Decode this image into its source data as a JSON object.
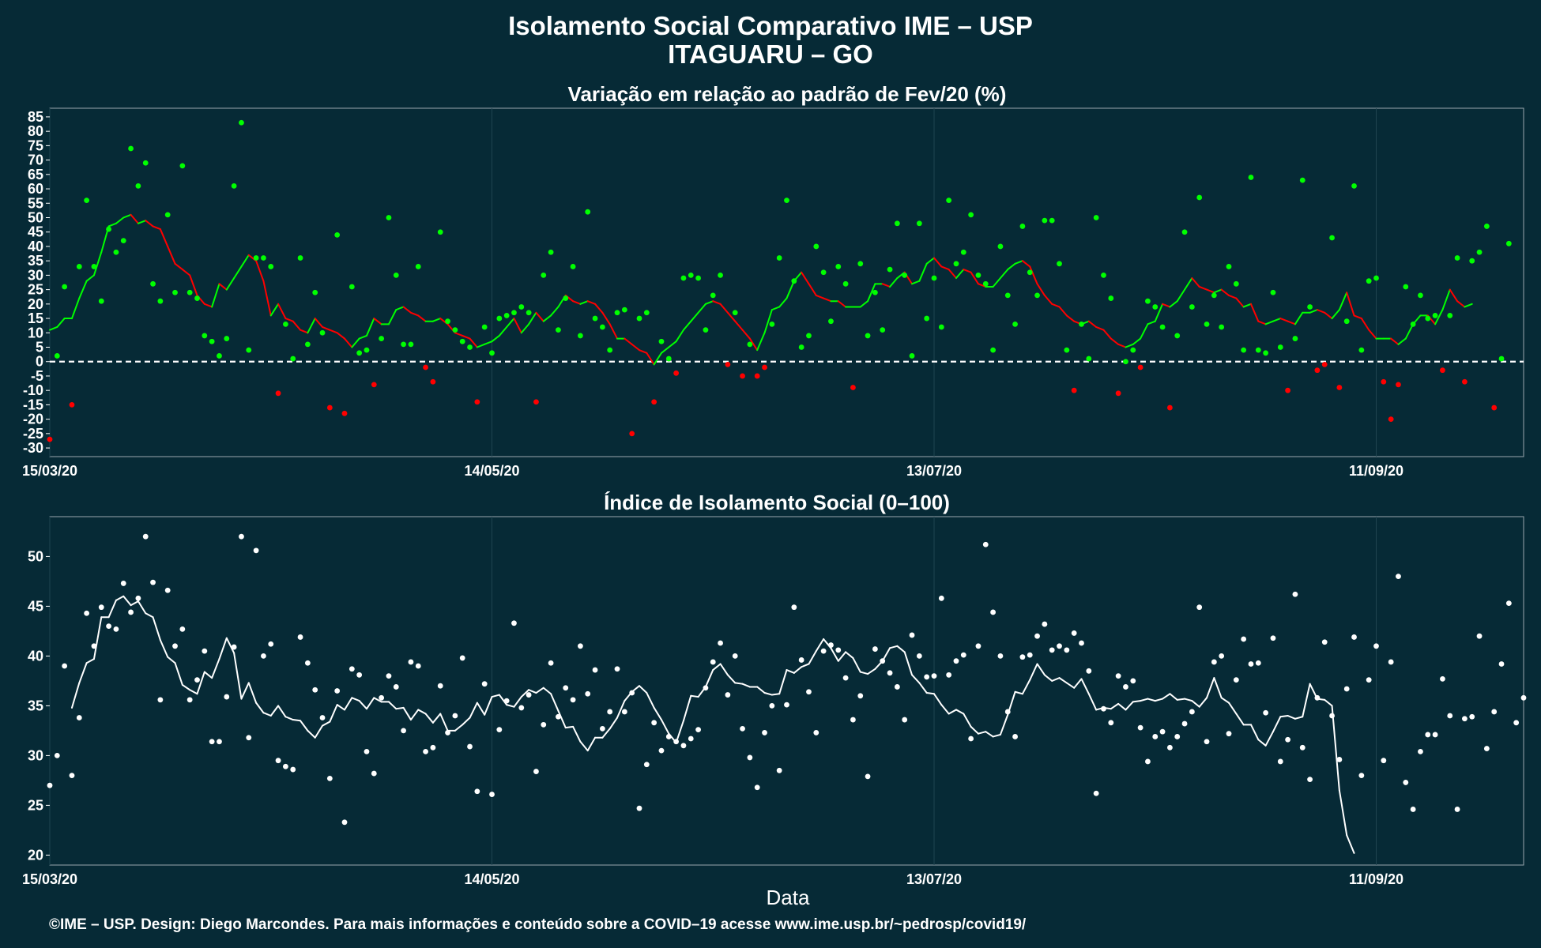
{
  "title": "Isolamento Social Comparativo IME – USP",
  "subtitle": "ITAGUARU – GO",
  "xlabel": "Data",
  "caption": "©IME – USP. Design: Diego Marcondes. Para mais informações e conteúdo sobre a COVID–19 acesse www.ime.usp.br/~pedrosp/covid19/",
  "colors": {
    "background": "#062a36",
    "positive": "#00ff00",
    "negative": "#ff0000",
    "index": "#ffffff",
    "zero_line": "#ffffff"
  },
  "chart_data": [
    {
      "type": "scatter",
      "title": "Variação em relação ao padrão de Fev/20 (%)",
      "x_start_date": "2020-03-15",
      "x_ticks": [
        {
          "label": "15/03/20",
          "day": 0
        },
        {
          "label": "14/05/20",
          "day": 60
        },
        {
          "label": "13/07/20",
          "day": 120
        },
        {
          "label": "11/09/20",
          "day": 180
        }
      ],
      "xlim_days": [
        0,
        200
      ],
      "ylim": [
        -33,
        88
      ],
      "y_ticks": [
        -30,
        -25,
        -20,
        -15,
        -10,
        -5,
        0,
        5,
        10,
        15,
        20,
        25,
        30,
        35,
        40,
        45,
        50,
        55,
        60,
        65,
        70,
        75,
        80,
        85
      ],
      "zero_line": true,
      "point_colors": "positive values green, negative values red",
      "series": [
        {
          "name": "daily",
          "values": [
            -27,
            2,
            26,
            -15,
            33,
            56,
            33,
            21,
            46,
            38,
            42,
            74,
            61,
            69,
            27,
            21,
            51,
            24,
            68,
            24,
            22,
            9,
            7,
            2,
            8,
            61,
            83,
            4,
            36,
            36,
            33,
            -11,
            13,
            1,
            36,
            6,
            24,
            10,
            -16,
            44,
            -18,
            26,
            3,
            4,
            -8,
            8,
            50,
            30,
            6,
            6,
            33,
            -2,
            -7,
            45,
            14,
            11,
            7,
            5,
            -14,
            12,
            3,
            15,
            16,
            17,
            19,
            17,
            -14,
            30,
            38,
            11,
            22,
            33,
            9,
            52,
            15,
            12,
            4,
            17,
            18,
            -25,
            15,
            17,
            -14,
            7,
            1,
            -4,
            29,
            30,
            29,
            11,
            23,
            30,
            -1,
            17,
            -5,
            6,
            -5,
            -2,
            13,
            36,
            56,
            28,
            5,
            9,
            40,
            31,
            14,
            33,
            27,
            -9,
            34,
            9,
            24,
            11,
            32,
            48,
            30,
            2,
            48,
            15,
            29,
            12,
            56,
            34,
            38,
            51,
            30,
            27,
            4,
            40,
            23,
            13,
            47,
            31,
            23,
            49,
            49,
            34,
            4,
            -10,
            13,
            1,
            50,
            30,
            22,
            -11,
            0,
            4,
            -2,
            21,
            19,
            12,
            -16,
            9,
            45,
            19,
            57,
            13,
            23,
            12,
            33,
            27,
            4,
            64,
            4,
            3,
            24,
            5,
            -10,
            8,
            63,
            19,
            -3,
            -1,
            43,
            -9,
            14,
            61,
            4,
            28,
            29,
            -7,
            -20,
            -8,
            26,
            13,
            23,
            15,
            16,
            -3,
            16,
            36,
            -7,
            35,
            38,
            47,
            -16,
            1,
            41
          ]
        },
        {
          "name": "moving average",
          "values": [
            11,
            12,
            15,
            15,
            22,
            28,
            30,
            38,
            47,
            48,
            50,
            51,
            48,
            49,
            47,
            46,
            40,
            34,
            32,
            30,
            23,
            20,
            19,
            27,
            25,
            29,
            33,
            37,
            35,
            28,
            16,
            20,
            15,
            14,
            11,
            10,
            15,
            12,
            11,
            10,
            8,
            5,
            8,
            9,
            15,
            13,
            13,
            18,
            19,
            17,
            16,
            14,
            14,
            15,
            13,
            10,
            9,
            8,
            5,
            6,
            7,
            9,
            12,
            15,
            10,
            13,
            17,
            14,
            16,
            19,
            23,
            21,
            20,
            21,
            20,
            17,
            13,
            8,
            8,
            6,
            4,
            3,
            -1,
            3,
            5,
            7,
            11,
            14,
            17,
            20,
            21,
            20,
            17,
            14,
            11,
            8,
            4,
            10,
            18,
            19,
            22,
            28,
            31,
            27,
            23,
            22,
            21,
            21,
            19,
            19,
            19,
            21,
            27,
            27,
            26,
            29,
            31,
            27,
            28,
            34,
            36,
            33,
            32,
            29,
            32,
            31,
            27,
            26,
            26,
            29,
            32,
            34,
            35,
            33,
            27,
            23,
            20,
            19,
            16,
            14,
            13,
            14,
            12,
            11,
            8,
            6,
            5,
            6,
            8,
            13,
            14,
            20,
            19,
            21,
            25,
            29,
            26,
            25,
            24,
            25,
            23,
            22,
            19,
            20,
            14,
            13,
            14,
            15,
            14,
            13,
            17,
            17,
            18,
            17,
            15,
            18,
            24,
            16,
            15,
            11,
            8,
            8,
            8,
            6,
            8,
            13,
            16,
            16,
            13,
            18,
            25,
            21,
            19,
            20,
            null
          ]
        }
      ]
    },
    {
      "type": "scatter",
      "title": "Índice de Isolamento Social (0–100)",
      "x_start_date": "2020-03-15",
      "x_ticks": [
        {
          "label": "15/03/20",
          "day": 0
        },
        {
          "label": "14/05/20",
          "day": 60
        },
        {
          "label": "13/07/20",
          "day": 120
        },
        {
          "label": "11/09/20",
          "day": 180
        }
      ],
      "xlim_days": [
        0,
        200
      ],
      "ylim": [
        19,
        54
      ],
      "y_ticks": [
        20,
        25,
        30,
        35,
        40,
        45,
        50
      ],
      "series": [
        {
          "name": "daily",
          "values": [
            27,
            30,
            39,
            28,
            33.8,
            44.3,
            41,
            44.9,
            43,
            42.7,
            47.3,
            44.4,
            45.8,
            52,
            47.4,
            35.6,
            46.6,
            41,
            42.7,
            35.6,
            37.6,
            40.5,
            31.4,
            31.4,
            35.9,
            40.9,
            52,
            31.8,
            50.6,
            40,
            41.2,
            29.5,
            28.9,
            28.6,
            41.9,
            39.3,
            36.6,
            33.8,
            27.7,
            36.5,
            23.3,
            38.7,
            38.1,
            30.4,
            28.2,
            35.8,
            38,
            36.9,
            32.5,
            39.4,
            39,
            30.4,
            30.8,
            37,
            32.3,
            34,
            39.8,
            30.9,
            26.4,
            37.2,
            26.1,
            32.6,
            35.5,
            43.3,
            34.8,
            36.1,
            28.4,
            33.1,
            39.3,
            33.9,
            36.8,
            35.6,
            41,
            36.2,
            38.6,
            32.7,
            34.4,
            38.7,
            34.4,
            36.3,
            24.7,
            29.1,
            33.3,
            30.5,
            31.9,
            31.4,
            31,
            31.7,
            32.6,
            36.8,
            39.4,
            41.3,
            36.1,
            40,
            32.7,
            29.8,
            26.8,
            32.3,
            35,
            28.5,
            35.1,
            44.9,
            39.6,
            36.4,
            32.3,
            40.5,
            41.1,
            40.6,
            37.8,
            33.6,
            36,
            27.9,
            40.7,
            39.5,
            38.3,
            36.9,
            33.6,
            42.1,
            40,
            37.9,
            38,
            45.8,
            38.1,
            39.5,
            40.1,
            31.7,
            41,
            51.2,
            44.4,
            40,
            34.4,
            31.9,
            39.9,
            40.1,
            42,
            43.2,
            40.6,
            41,
            40.6,
            42.3,
            41.3,
            38.5,
            26.2,
            34.7,
            33.3,
            38,
            36.9,
            37.5,
            32.8,
            29.4,
            31.9,
            32.4,
            30.8,
            31.9,
            33.2,
            34.4,
            44.9,
            31.4,
            39.4,
            40,
            32.2,
            37.6,
            41.7,
            39.2,
            39.3,
            34.3,
            41.8,
            29.4,
            31.6,
            46.2,
            30.8,
            27.6,
            35.8,
            41.4,
            34,
            29.6,
            36.7,
            41.9,
            28,
            37.6,
            41,
            29.5,
            39.4,
            48,
            27.3,
            24.6,
            30.4,
            32.1,
            32.1,
            37.7,
            34,
            24.6,
            33.7,
            33.9,
            42,
            30.7,
            34.4,
            39.2,
            45.3,
            33.3,
            35.8
          ]
        },
        {
          "name": "moving average",
          "values": [
            null,
            null,
            null,
            34.8,
            37.3,
            39.3,
            39.7,
            43.9,
            43.9,
            45.6,
            46,
            45.1,
            45.5,
            44.3,
            43.9,
            41.6,
            39.9,
            39.3,
            37.1,
            36.6,
            36.2,
            38.4,
            37.8,
            39.7,
            41.8,
            40.3,
            35.7,
            37.3,
            35.3,
            34.3,
            34,
            35,
            33.9,
            33.6,
            33.5,
            32.5,
            31.8,
            33,
            33.4,
            35.1,
            34.6,
            35.8,
            35.5,
            34.7,
            35.8,
            35.4,
            35.4,
            34.7,
            34.8,
            33.6,
            34.6,
            34.2,
            33.3,
            34.2,
            32.5,
            32.5,
            33.1,
            33.8,
            35.3,
            34.1,
            35.9,
            36.1,
            35.1,
            34.9,
            35.9,
            36.6,
            36.3,
            36.8,
            36.2,
            34.5,
            32.8,
            32.9,
            31.4,
            30.5,
            31.8,
            31.8,
            32.7,
            33.8,
            35.5,
            36.4,
            37,
            36.3,
            34.8,
            33.6,
            32.2,
            31.3,
            33.5,
            36,
            35.9,
            36.9,
            38.6,
            39.2,
            38.1,
            37.3,
            37.2,
            36.9,
            36.9,
            36.3,
            36.1,
            36.2,
            38.6,
            38.3,
            38.9,
            39.2,
            40.5,
            41.7,
            40.8,
            39.5,
            40.4,
            39.8,
            38.4,
            38.2,
            38.7,
            39.5,
            40.8,
            41,
            40.4,
            38.1,
            37.3,
            36.3,
            36.2,
            35.1,
            34.2,
            34.6,
            34.2,
            32.9,
            32.2,
            32.4,
            31.9,
            32.1,
            34.1,
            36.4,
            36.2,
            37.6,
            39.2,
            38.1,
            37.5,
            37.8,
            37.3,
            36.8,
            37.7,
            36.2,
            34.6,
            34.8,
            34.7,
            35.2,
            34.6,
            35.4,
            35.5,
            35.7,
            35.5,
            35.7,
            36.2,
            35.6,
            35.7,
            35.5,
            34.9,
            35.8,
            37.8,
            35.8,
            35.3,
            34.2,
            33.1,
            33.1,
            31.6,
            31,
            32.4,
            33.9,
            34,
            33.7,
            33.9,
            37.2,
            35.7,
            35.6,
            35,
            26.5,
            22,
            20.2
          ]
        }
      ]
    }
  ]
}
